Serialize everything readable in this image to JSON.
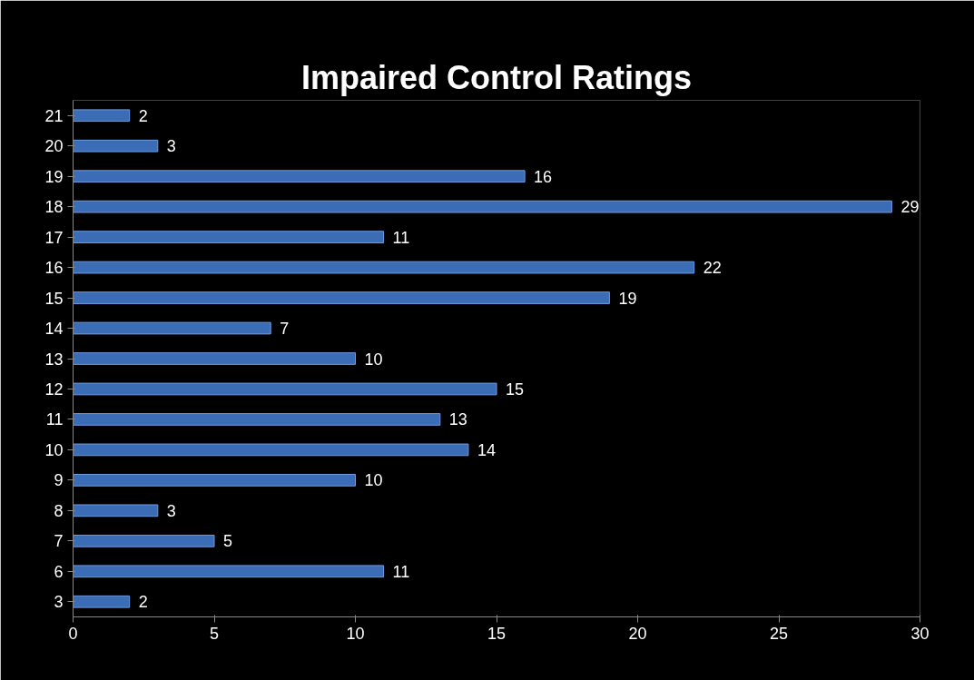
{
  "chart_data": {
    "type": "bar",
    "orientation": "horizontal",
    "title": "Impaired Control Ratings",
    "categories": [
      "21",
      "20",
      "19",
      "18",
      "17",
      "16",
      "15",
      "14",
      "13",
      "12",
      "11",
      "10",
      "9",
      "8",
      "7",
      "6",
      "3"
    ],
    "values": [
      2,
      3,
      16,
      29,
      11,
      22,
      19,
      7,
      10,
      15,
      13,
      14,
      10,
      3,
      5,
      11,
      2
    ],
    "color": "#3a6db5",
    "xlim": [
      0,
      30
    ],
    "xticks": [
      0,
      5,
      10,
      15,
      20,
      25,
      30
    ],
    "grid": false,
    "data_labels": true
  }
}
